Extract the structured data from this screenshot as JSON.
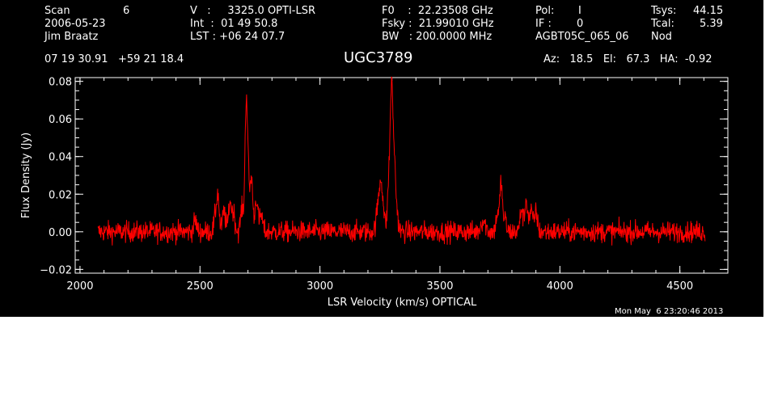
{
  "header": {
    "scan_label": "Scan",
    "scan_number": "6",
    "date": "2006-05-23",
    "observer": "Jim Braatz",
    "velocity": "V   :     3325.0 OPTI-LSR",
    "integration": "Int  :  01 49 50.8",
    "lst": "LST : +06 24 07.7",
    "f0": "F0    :  22.23508 GHz",
    "fsky": "Fsky :  21.99010 GHz",
    "bw": "BW   : 200.0000 MHz",
    "pol_label": "Pol:",
    "pol_value": "I",
    "if_label": "IF :",
    "if_value": "0",
    "project": "AGBT05C_065_06",
    "tsys_label": "Tsys:",
    "tsys_value": "44.15",
    "tcal_label": "Tcal:",
    "tcal_value": "5.39",
    "procedure": "Nod",
    "coordinates": "07 19 30.91   +59 21 18.4",
    "source": "UGC3789",
    "az_el_ha": "Az:   18.5   El:   67.3   HA:  -0.92"
  },
  "timestamp": "Mon May  6 23:20:46 2013",
  "chart_data": {
    "type": "line",
    "xlabel": "LSR Velocity (km/s) OPTICAL",
    "ylabel": "Flux Density (Jy)",
    "xlim": [
      1980,
      4700
    ],
    "ylim": [
      -0.022,
      0.082
    ],
    "xticks": [
      2000,
      2500,
      3000,
      3500,
      4000,
      4500
    ],
    "xtick_labels": [
      "2000",
      "2500",
      "3000",
      "3500",
      "4000",
      "4500"
    ],
    "yticks": [
      -0.02,
      0.0,
      0.02,
      0.04,
      0.06,
      0.08
    ],
    "ytick_labels": [
      "−0.02",
      "0.00",
      "0.02",
      "0.04",
      "0.06",
      "0.08"
    ],
    "x_minor_step": 100,
    "y_minor_step": 0.005,
    "grid": false,
    "line_color": "#ff0000",
    "axis_color": "#ffffff",
    "background": "#000000",
    "x_range": [
      2075,
      4605
    ],
    "noise_rms": 0.0028,
    "series": [
      {
        "components": [
          {
            "center": 2480,
            "amplitude": 0.006,
            "width": 6
          },
          {
            "center": 2565,
            "amplitude": 0.009,
            "width": 6
          },
          {
            "center": 2575,
            "amplitude": 0.018,
            "width": 5
          },
          {
            "center": 2600,
            "amplitude": 0.011,
            "width": 6
          },
          {
            "center": 2625,
            "amplitude": 0.016,
            "width": 6
          },
          {
            "center": 2640,
            "amplitude": 0.01,
            "width": 6
          },
          {
            "center": 2675,
            "amplitude": 0.012,
            "width": 6
          },
          {
            "center": 2692,
            "amplitude": 0.058,
            "width": 5
          },
          {
            "center": 2700,
            "amplitude": 0.03,
            "width": 6
          },
          {
            "center": 2715,
            "amplitude": 0.028,
            "width": 5
          },
          {
            "center": 2735,
            "amplitude": 0.018,
            "width": 6
          },
          {
            "center": 2755,
            "amplitude": 0.009,
            "width": 6
          },
          {
            "center": 3245,
            "amplitude": 0.015,
            "width": 9
          },
          {
            "center": 3255,
            "amplitude": 0.018,
            "width": 6
          },
          {
            "center": 3265,
            "amplitude": 0.008,
            "width": 6
          },
          {
            "center": 3288,
            "amplitude": 0.028,
            "width": 6
          },
          {
            "center": 3298,
            "amplitude": 0.063,
            "width": 5
          },
          {
            "center": 3308,
            "amplitude": 0.04,
            "width": 6
          },
          {
            "center": 3320,
            "amplitude": 0.01,
            "width": 6
          },
          {
            "center": 3680,
            "amplitude": 0.006,
            "width": 10
          },
          {
            "center": 3740,
            "amplitude": 0.01,
            "width": 6
          },
          {
            "center": 3755,
            "amplitude": 0.026,
            "width": 5
          },
          {
            "center": 3770,
            "amplitude": 0.007,
            "width": 6
          },
          {
            "center": 3840,
            "amplitude": 0.012,
            "width": 6
          },
          {
            "center": 3860,
            "amplitude": 0.017,
            "width": 6
          },
          {
            "center": 3880,
            "amplitude": 0.011,
            "width": 6
          },
          {
            "center": 3900,
            "amplitude": 0.011,
            "width": 6
          }
        ]
      }
    ]
  }
}
